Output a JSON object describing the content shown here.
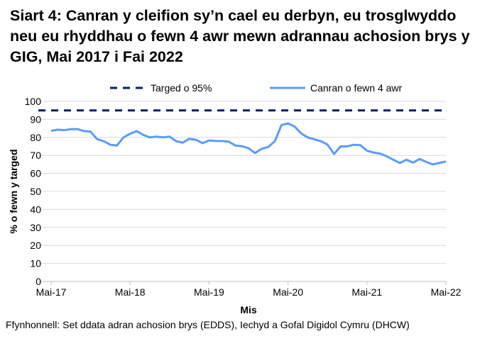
{
  "title": "Siart 4: Canran y cleifion sy’n cael eu derbyn, eu trosglwyddo neu eu rhyddhau o fewn 4 awr mewn adrannau achosion brys y GIG, Mai 2017 i Fai 2022",
  "source": "Ffynhonnell: Set ddata adran achosion brys (EDDS), Iechyd a Gofal Digidol Cymru (DHCW)",
  "chart_data": {
    "type": "line",
    "xlabel": "Mis",
    "ylabel": "% o fewn y targed",
    "ylim": [
      0,
      100
    ],
    "yticks": [
      0,
      10,
      20,
      30,
      40,
      50,
      60,
      70,
      80,
      90,
      100
    ],
    "xtick_labels": [
      "Mai-17",
      "Mai-18",
      "Mai-19",
      "Mai-20",
      "Mai-21",
      "Mai-22"
    ],
    "grid": true,
    "legend_position": "top",
    "x_start": "Mai-17",
    "x_end": "Mai-22",
    "series": [
      {
        "name": "Targed o 95%",
        "color": "#002060",
        "style": "dashed",
        "constant": 95
      },
      {
        "name": "Canran o fewn 4 awr",
        "color": "#5B9BFF",
        "style": "solid",
        "values": [
          83.6,
          84.3,
          84.0,
          84.6,
          84.6,
          83.5,
          83.2,
          79.0,
          77.9,
          75.9,
          75.5,
          80.0,
          82.0,
          83.5,
          81.4,
          80.0,
          80.4,
          80.0,
          80.4,
          77.9,
          77.1,
          79.2,
          78.7,
          76.8,
          78.3,
          78.0,
          78.0,
          77.6,
          75.5,
          75.1,
          74.0,
          71.3,
          73.7,
          74.7,
          77.9,
          86.8,
          87.8,
          86.0,
          82.2,
          80.0,
          78.9,
          77.9,
          76.0,
          70.8,
          75.0,
          75.0,
          75.9,
          75.7,
          72.6,
          71.6,
          71.0,
          69.5,
          67.6,
          65.8,
          67.6,
          66.0,
          68.0,
          66.4,
          65.0,
          65.8,
          66.6
        ]
      }
    ]
  }
}
